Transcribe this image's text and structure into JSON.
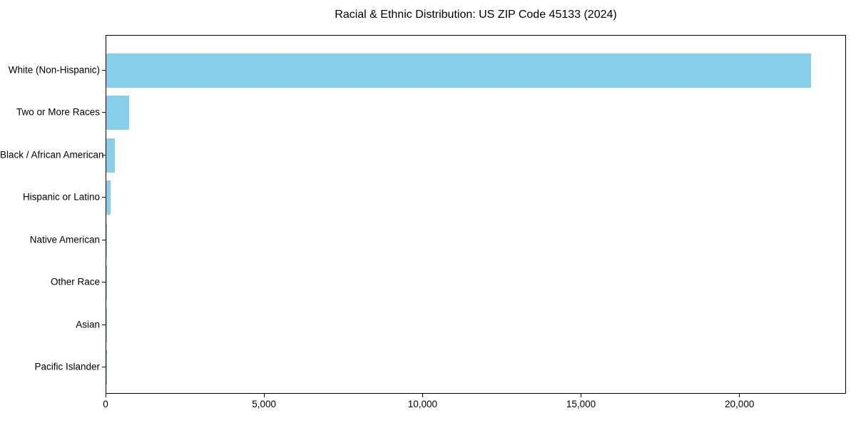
{
  "chart_data": {
    "type": "bar",
    "orientation": "horizontal",
    "title": "Racial & Ethnic Distribution: US ZIP Code 45133 (2024)",
    "categories": [
      "White (Non-Hispanic)",
      "Two or More Races",
      "Black / African American",
      "Hispanic or Latino",
      "Native American",
      "Other Race",
      "Asian",
      "Pacific Islander"
    ],
    "values": [
      22230,
      730,
      280,
      130,
      30,
      25,
      8,
      3
    ],
    "xlabel": "",
    "ylabel": "",
    "xlim": [
      0,
      23360
    ],
    "xticks": [
      0,
      5000,
      10000,
      15000,
      20000
    ],
    "xtick_labels": [
      "0",
      "5,000",
      "10,000",
      "15,000",
      "20,000"
    ],
    "bar_color": "#87CEEB",
    "text_color": "#000000",
    "background_color": "#ffffff",
    "grid": false,
    "legend": null
  }
}
